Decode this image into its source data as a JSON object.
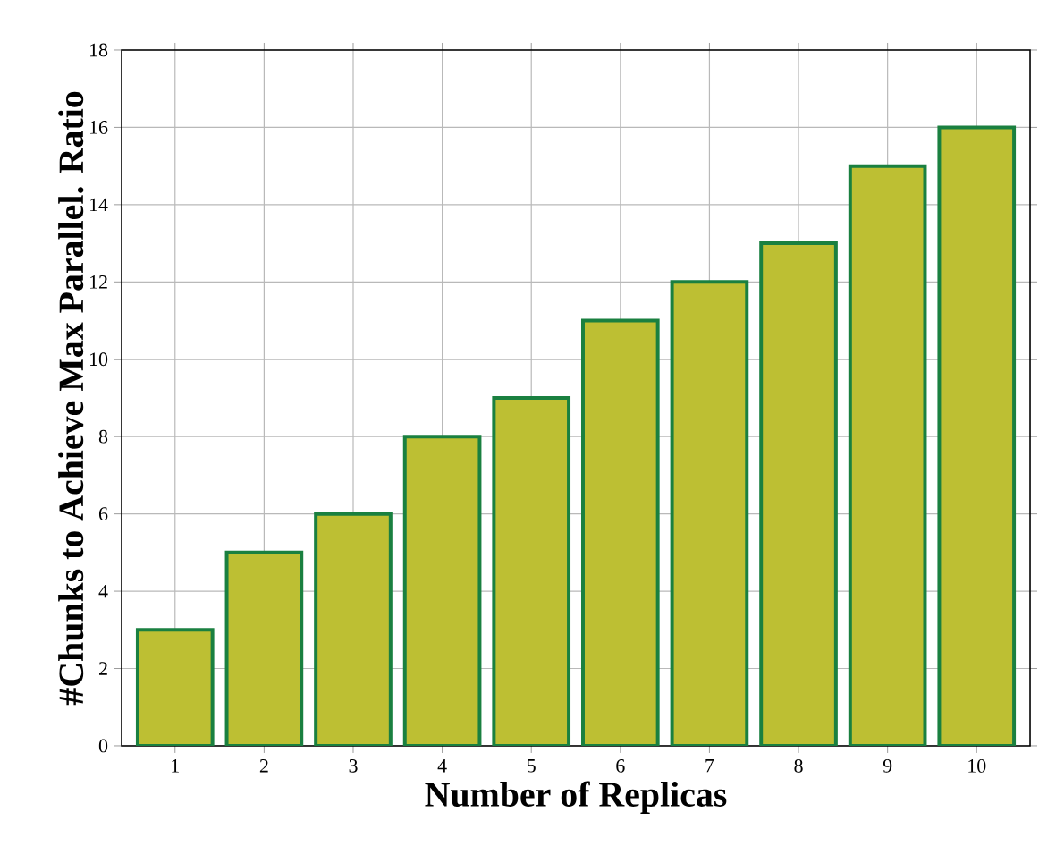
{
  "chart_data": {
    "type": "bar",
    "xlabel": "Number of Replicas",
    "ylabel": "#Chunks to Achieve Max Parallel. Ratio",
    "categories": [
      "1",
      "2",
      "3",
      "4",
      "5",
      "6",
      "7",
      "8",
      "9",
      "10"
    ],
    "values": [
      3,
      5,
      6,
      8,
      9,
      11,
      12,
      13,
      15,
      16
    ],
    "color": "#bdbf33",
    "ylim": [
      0,
      18
    ],
    "yticks": [
      0,
      2,
      4,
      6,
      8,
      10,
      12,
      14,
      16,
      18
    ],
    "grid": true
  }
}
